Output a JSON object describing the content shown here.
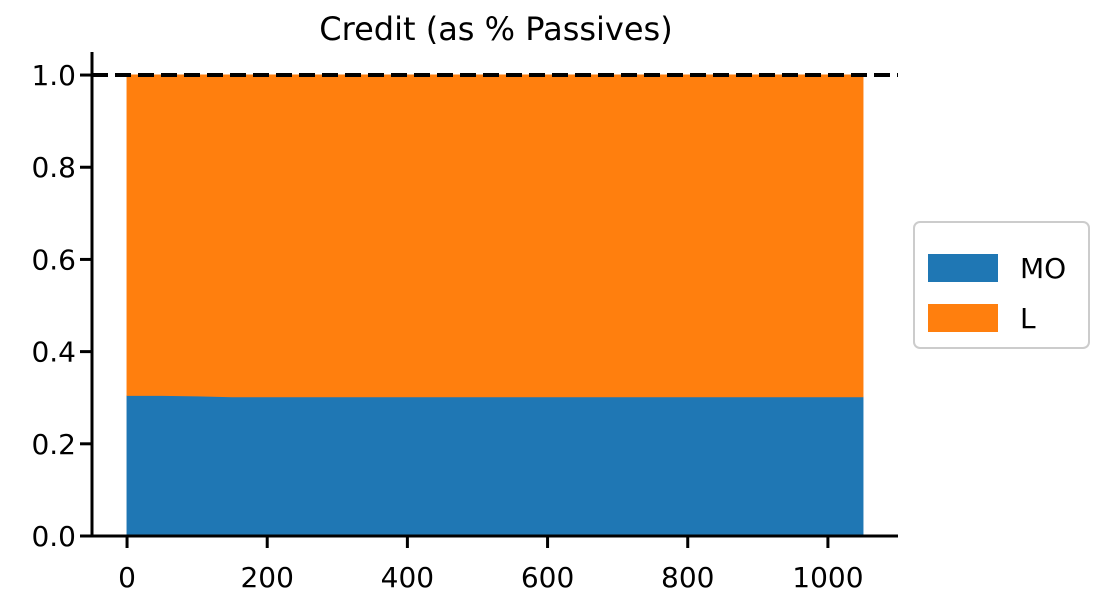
{
  "chart_data": {
    "type": "area",
    "stacked": true,
    "title": "Credit (as % Passives)",
    "xlabel": "",
    "ylabel": "",
    "xlim": [
      -50,
      1100
    ],
    "ylim": [
      0,
      1.05
    ],
    "x_ticks": [
      0,
      200,
      400,
      600,
      800,
      1000
    ],
    "x_tick_labels": [
      "0",
      "200",
      "400",
      "600",
      "800",
      "1000"
    ],
    "y_ticks": [
      0.0,
      0.2,
      0.4,
      0.6,
      0.8,
      1.0
    ],
    "y_tick_labels": [
      "0.0",
      "0.2",
      "0.4",
      "0.6",
      "0.8",
      "1.0"
    ],
    "x": [
      0,
      50,
      100,
      150,
      200,
      300,
      400,
      500,
      600,
      700,
      800,
      900,
      1000,
      1050
    ],
    "series": [
      {
        "name": "MO",
        "color": "#1f77b4",
        "values": [
          0.305,
          0.305,
          0.304,
          0.302,
          0.302,
          0.302,
          0.302,
          0.302,
          0.302,
          0.302,
          0.302,
          0.302,
          0.302,
          0.302
        ]
      },
      {
        "name": "L",
        "color": "#ff7f0e",
        "values": [
          0.695,
          0.695,
          0.696,
          0.698,
          0.698,
          0.698,
          0.698,
          0.698,
          0.698,
          0.698,
          0.698,
          0.698,
          0.698,
          0.698
        ]
      }
    ],
    "reference_line": {
      "y": 1.0,
      "style": "dashed",
      "color": "#000000"
    },
    "legend": {
      "position": "right-center",
      "entries": [
        "MO",
        "L"
      ]
    },
    "grid": false
  }
}
